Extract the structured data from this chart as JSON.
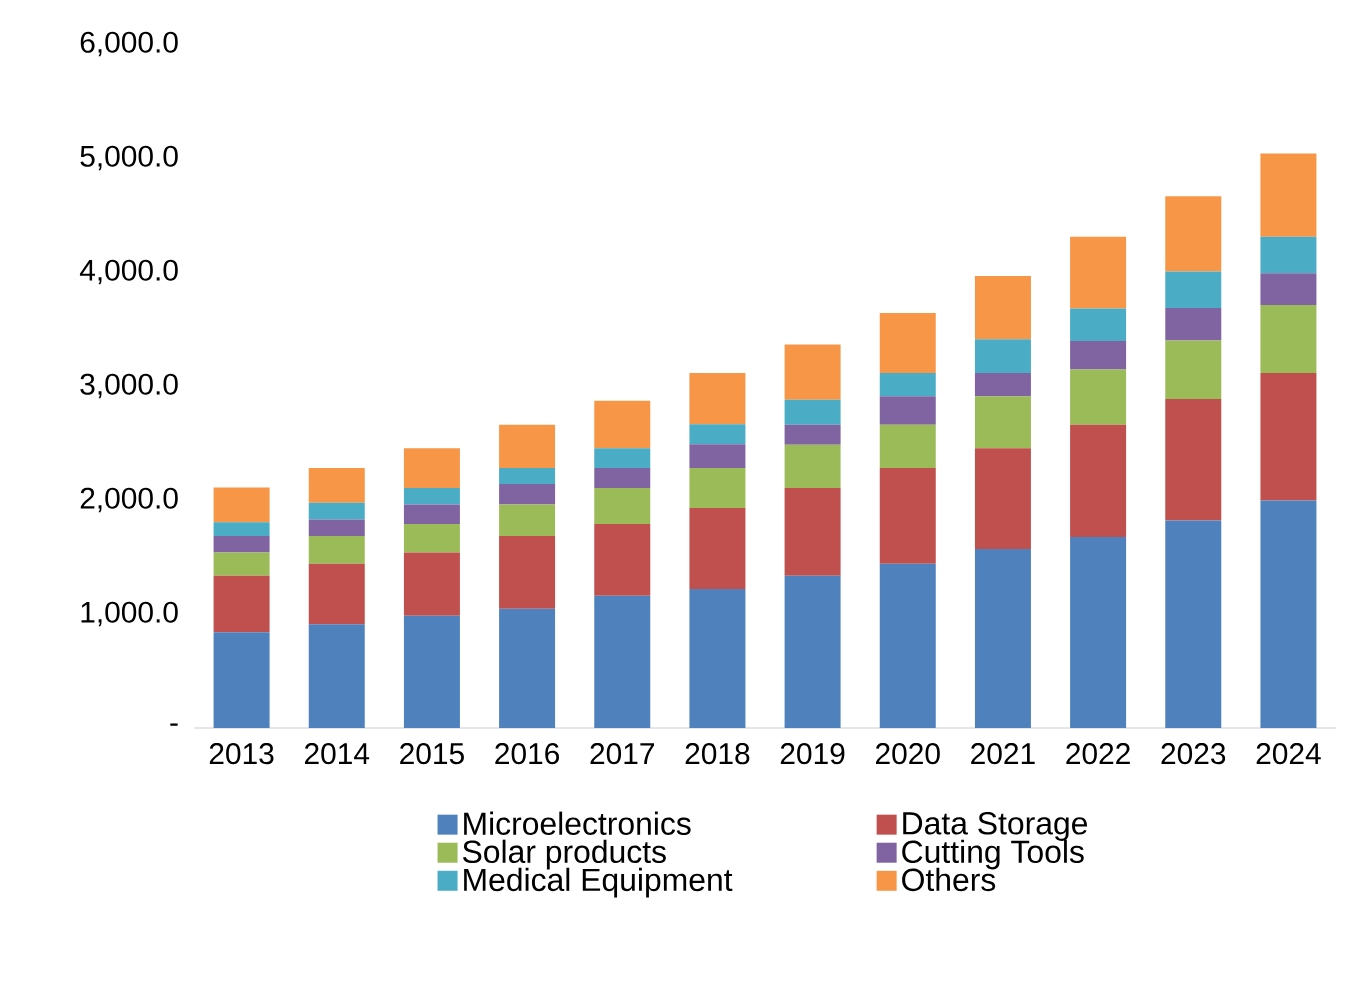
{
  "chart_data": {
    "type": "bar",
    "stacked": true,
    "categories": [
      "2013",
      "2014",
      "2015",
      "2016",
      "2017",
      "2018",
      "2019",
      "2020",
      "2021",
      "2022",
      "2023",
      "2024"
    ],
    "series": [
      {
        "name": "Microelectronics",
        "color": "#4f81bd",
        "values": [
          840,
          910,
          985,
          1045,
          1160,
          1220,
          1335,
          1440,
          1570,
          1675,
          1820,
          1995
        ]
      },
      {
        "name": "Data Storage",
        "color": "#c0504d",
        "values": [
          495,
          530,
          555,
          640,
          630,
          710,
          770,
          840,
          885,
          985,
          1065,
          1120
        ]
      },
      {
        "name": "Solar products",
        "color": "#9bbb59",
        "values": [
          205,
          245,
          250,
          275,
          315,
          350,
          380,
          380,
          455,
          485,
          515,
          595
        ]
      },
      {
        "name": "Cutting Tools",
        "color": "#8064a2",
        "values": [
          145,
          145,
          170,
          180,
          175,
          210,
          175,
          250,
          205,
          250,
          285,
          280
        ]
      },
      {
        "name": "Medical Equipment",
        "color": "#4bacc6",
        "values": [
          120,
          145,
          145,
          140,
          175,
          175,
          220,
          205,
          295,
          285,
          320,
          320
        ]
      },
      {
        "name": "Others",
        "color": "#f79646",
        "values": [
          305,
          305,
          350,
          380,
          415,
          450,
          485,
          525,
          555,
          630,
          660,
          730
        ]
      }
    ],
    "ylim": [
      0,
      6000
    ],
    "yticks": [
      {
        "value": 0,
        "label": "-"
      },
      {
        "value": 1000,
        "label": "1,000.0"
      },
      {
        "value": 2000,
        "label": "2,000.0"
      },
      {
        "value": 3000,
        "label": "3,000.0"
      },
      {
        "value": 4000,
        "label": "4,000.0"
      },
      {
        "value": 5000,
        "label": "5,000.0"
      },
      {
        "value": 6000,
        "label": "6,000.0"
      }
    ],
    "legend": "bottom"
  }
}
